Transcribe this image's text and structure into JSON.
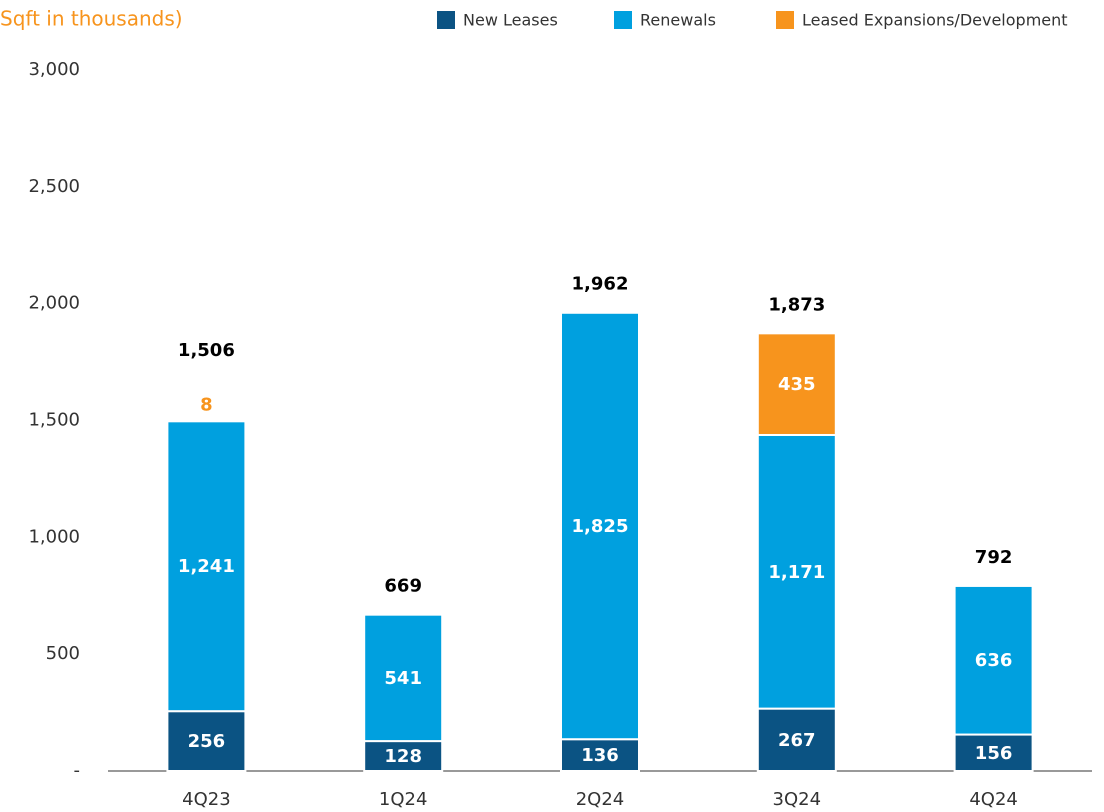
{
  "chart_data": {
    "type": "stacked_bar",
    "title": "Sqft in thousands)",
    "categories": [
      "4Q23",
      "1Q24",
      "2Q24",
      "3Q24",
      "4Q24"
    ],
    "series": [
      {
        "name": "New Leases",
        "color": "#0b5383",
        "values": [
          256,
          128,
          136,
          267,
          156
        ],
        "value_labels": [
          "256",
          "128",
          "136",
          "267",
          "156"
        ]
      },
      {
        "name": "Renewals",
        "color": "#00a0df",
        "values": [
          1241,
          541,
          1825,
          1171,
          636
        ],
        "value_labels": [
          "1,241",
          "541",
          "1,825",
          "1,171",
          "636"
        ]
      },
      {
        "name": "Leased Expansions/Development",
        "color": "#f7941d",
        "values": [
          8,
          null,
          null,
          435,
          null
        ],
        "value_labels": [
          "8",
          null,
          null,
          "435",
          null
        ]
      }
    ],
    "totals": [
      1506,
      669,
      1962,
      1873,
      792
    ],
    "total_labels": [
      "1,506",
      "669",
      "1,962",
      "1,873",
      "792"
    ],
    "ylim": [
      0,
      3000
    ],
    "yticks": [
      {
        "value": 0,
        "label": "-"
      },
      {
        "value": 500,
        "label": "500"
      },
      {
        "value": 1000,
        "label": "1,000"
      },
      {
        "value": 1500,
        "label": "1,500"
      },
      {
        "value": 2000,
        "label": "2,000"
      },
      {
        "value": 2500,
        "label": "2,500"
      },
      {
        "value": 3000,
        "label": "3,000"
      }
    ],
    "legend": "top"
  }
}
